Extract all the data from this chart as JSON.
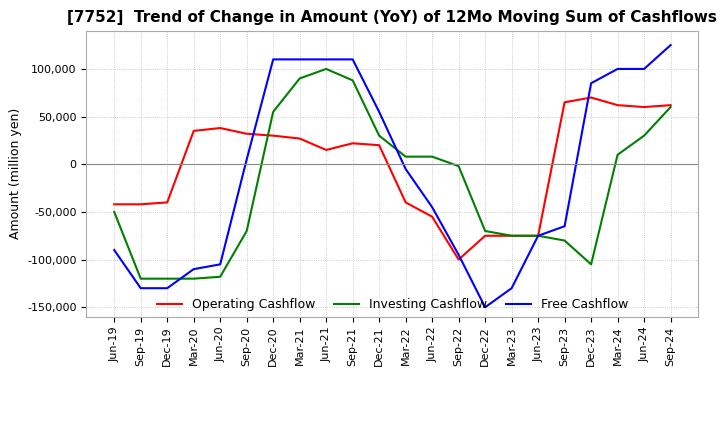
{
  "title": "[7752]  Trend of Change in Amount (YoY) of 12Mo Moving Sum of Cashflows",
  "ylabel": "Amount (million yen)",
  "title_fontsize": 11,
  "label_fontsize": 9,
  "tick_fontsize": 8,
  "ylim": [
    -160000,
    140000
  ],
  "yticks": [
    -150000,
    -100000,
    -50000,
    0,
    50000,
    100000
  ],
  "x_labels": [
    "Jun-19",
    "Sep-19",
    "Dec-19",
    "Mar-20",
    "Jun-20",
    "Sep-20",
    "Dec-20",
    "Mar-21",
    "Jun-21",
    "Sep-21",
    "Dec-21",
    "Mar-22",
    "Jun-22",
    "Sep-22",
    "Dec-22",
    "Mar-23",
    "Jun-23",
    "Sep-23",
    "Dec-23",
    "Mar-24",
    "Jun-24",
    "Sep-24"
  ],
  "operating": [
    -42000,
    -42000,
    -40000,
    35000,
    38000,
    32000,
    30000,
    27000,
    15000,
    22000,
    20000,
    -40000,
    -55000,
    -100000,
    -75000,
    -75000,
    -75000,
    65000,
    70000,
    62000,
    60000,
    62000
  ],
  "investing": [
    -50000,
    -120000,
    -120000,
    -120000,
    -118000,
    -70000,
    55000,
    90000,
    100000,
    88000,
    30000,
    8000,
    8000,
    -2000,
    -70000,
    -75000,
    -75000,
    -80000,
    -105000,
    10000,
    30000,
    60000
  ],
  "free": [
    -90000,
    -130000,
    -130000,
    -110000,
    -105000,
    5000,
    110000,
    110000,
    110000,
    110000,
    55000,
    -5000,
    -45000,
    -95000,
    -150000,
    -130000,
    -75000,
    -65000,
    85000,
    100000,
    100000,
    125000
  ],
  "operating_color": "#ff0000",
  "investing_color": "#008000",
  "free_color": "#0000ff",
  "grid_color": "#bbbbbb",
  "background_color": "#ffffff"
}
